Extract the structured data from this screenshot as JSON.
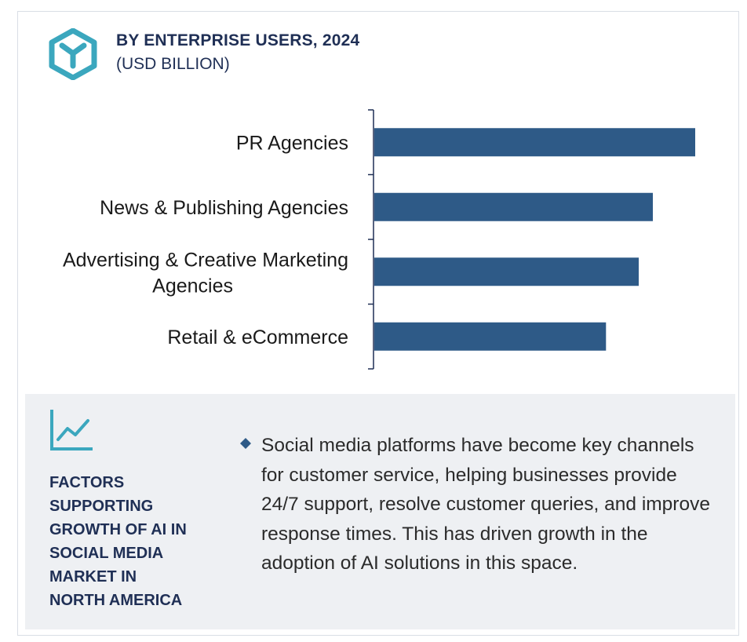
{
  "header": {
    "title": "BY ENTERPRISE USERS, 2024",
    "subtitle": "(USD BILLION)"
  },
  "colors": {
    "bar": "#2e5a87",
    "accent": "#3ba7be",
    "heading": "#1f2f55",
    "panel_bg": "#eef0f3"
  },
  "chart_data": {
    "type": "bar",
    "orientation": "horizontal",
    "title": "BY ENTERPRISE USERS, 2024",
    "subtitle": "(USD BILLION)",
    "categories": [
      "PR Agencies",
      "News & Publishing Agencies",
      "Advertising & Creative Marketing Agencies",
      "Retail & eCommerce"
    ],
    "values": [
      1.0,
      0.868,
      0.824,
      0.722
    ],
    "value_note_hidden": true,
    "grid": false,
    "legend": "none"
  },
  "factors": {
    "icon": "trend-line-icon",
    "title_lines": [
      "FACTORS",
      "SUPPORTING",
      "GROWTH OF AI IN",
      "SOCIAL MEDIA",
      "MARKET IN",
      "NORTH AMERICA"
    ],
    "bullet_icon": "diamond-bullet-icon",
    "text": "Social media platforms have become key channels for customer service, helping businesses provide 24/7 support, resolve customer queries, and improve response times. This has driven growth in the adoption of AI solutions in this space."
  }
}
